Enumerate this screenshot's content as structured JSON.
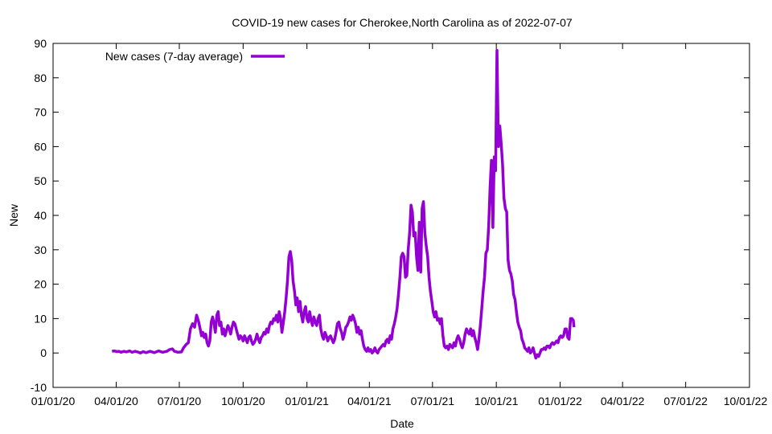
{
  "chart_data": {
    "type": "line",
    "title": "COVID-19 new cases for Cherokee,North Carolina as of 2022-07-07",
    "xlabel": "Date",
    "ylabel": "New",
    "ylim": [
      -10,
      90
    ],
    "yticks": [
      -10,
      0,
      10,
      20,
      30,
      40,
      50,
      60,
      70,
      80,
      90
    ],
    "xlim_days": [
      0,
      1004
    ],
    "xticks": [
      {
        "label": "01/01/20",
        "day": 0
      },
      {
        "label": "04/01/20",
        "day": 91
      },
      {
        "label": "07/01/20",
        "day": 182
      },
      {
        "label": "10/01/20",
        "day": 274
      },
      {
        "label": "01/01/21",
        "day": 366
      },
      {
        "label": "04/01/21",
        "day": 456
      },
      {
        "label": "07/01/21",
        "day": 547
      },
      {
        "label": "10/01/21",
        "day": 639
      },
      {
        "label": "01/01/22",
        "day": 731
      },
      {
        "label": "04/01/22",
        "day": 821
      },
      {
        "label": "07/01/22",
        "day": 912
      },
      {
        "label": "10/01/22",
        "day": 1004
      }
    ],
    "legend": {
      "position": "top-left",
      "label": "New cases (7-day average)"
    },
    "series": [
      {
        "name": "New cases (7-day average)",
        "color": "#9400d3",
        "x_unit": "days since 2020-01-01",
        "points": [
          [
            85,
            0.5
          ],
          [
            88,
            0.6
          ],
          [
            92,
            0.4
          ],
          [
            95,
            0.5
          ],
          [
            98,
            0.2
          ],
          [
            102,
            0.5
          ],
          [
            106,
            0.3
          ],
          [
            110,
            0.6
          ],
          [
            114,
            0.2
          ],
          [
            118,
            0.5
          ],
          [
            122,
            0.3
          ],
          [
            126,
            0.0
          ],
          [
            130,
            0.4
          ],
          [
            134,
            0.1
          ],
          [
            140,
            0.5
          ],
          [
            146,
            0.1
          ],
          [
            152,
            0.6
          ],
          [
            158,
            0.2
          ],
          [
            164,
            0.5
          ],
          [
            168,
            1.0
          ],
          [
            172,
            1.2
          ],
          [
            175,
            0.5
          ],
          [
            180,
            0.2
          ],
          [
            185,
            0.3
          ],
          [
            188,
            1.5
          ],
          [
            192,
            2.5
          ],
          [
            195,
            3.0
          ],
          [
            198,
            7.0
          ],
          [
            201,
            8.5
          ],
          [
            204,
            7.5
          ],
          [
            207,
            11.0
          ],
          [
            210,
            9.0
          ],
          [
            212,
            7.0
          ],
          [
            214,
            5.0
          ],
          [
            216,
            6.0
          ],
          [
            218,
            4.5
          ],
          [
            220,
            5.5
          ],
          [
            222,
            3.0
          ],
          [
            224,
            2.0
          ],
          [
            226,
            3.5
          ],
          [
            228,
            9.0
          ],
          [
            230,
            10.5
          ],
          [
            232,
            8.5
          ],
          [
            234,
            6.0
          ],
          [
            236,
            11.0
          ],
          [
            238,
            12.0
          ],
          [
            240,
            8.0
          ],
          [
            242,
            9.0
          ],
          [
            244,
            5.5
          ],
          [
            246,
            7.0
          ],
          [
            248,
            5.0
          ],
          [
            250,
            6.5
          ],
          [
            252,
            8.0
          ],
          [
            254,
            7.0
          ],
          [
            256,
            5.5
          ],
          [
            258,
            7.5
          ],
          [
            260,
            9.0
          ],
          [
            262,
            8.5
          ],
          [
            264,
            7.0
          ],
          [
            266,
            5.5
          ],
          [
            268,
            4.0
          ],
          [
            270,
            5.0
          ],
          [
            272,
            4.5
          ],
          [
            274,
            3.5
          ],
          [
            276,
            5.0
          ],
          [
            278,
            4.0
          ],
          [
            280,
            3.0
          ],
          [
            282,
            4.5
          ],
          [
            284,
            5.0
          ],
          [
            286,
            3.5
          ],
          [
            288,
            2.5
          ],
          [
            290,
            3.0
          ],
          [
            292,
            4.0
          ],
          [
            294,
            5.5
          ],
          [
            296,
            4.0
          ],
          [
            298,
            3.0
          ],
          [
            300,
            4.5
          ],
          [
            302,
            5.0
          ],
          [
            304,
            6.0
          ],
          [
            306,
            5.5
          ],
          [
            308,
            7.0
          ],
          [
            310,
            6.0
          ],
          [
            312,
            8.0
          ],
          [
            314,
            9.0
          ],
          [
            316,
            8.5
          ],
          [
            318,
            10.0
          ],
          [
            320,
            9.5
          ],
          [
            322,
            11.0
          ],
          [
            324,
            9.0
          ],
          [
            326,
            12.0
          ],
          [
            328,
            10.0
          ],
          [
            330,
            6.0
          ],
          [
            332,
            9.0
          ],
          [
            334,
            12.0
          ],
          [
            336,
            16.0
          ],
          [
            338,
            21.0
          ],
          [
            340,
            28.0
          ],
          [
            342,
            29.5
          ],
          [
            344,
            27.0
          ],
          [
            346,
            21.0
          ],
          [
            348,
            18.0
          ],
          [
            350,
            14.0
          ],
          [
            352,
            16.0
          ],
          [
            354,
            12.0
          ],
          [
            356,
            15.0
          ],
          [
            358,
            11.0
          ],
          [
            360,
            9.0
          ],
          [
            362,
            12.0
          ],
          [
            364,
            13.5
          ],
          [
            366,
            10.0
          ],
          [
            368,
            9.0
          ],
          [
            370,
            12.0
          ],
          [
            372,
            9.5
          ],
          [
            374,
            8.0
          ],
          [
            376,
            10.5
          ],
          [
            378,
            9.0
          ],
          [
            380,
            8.0
          ],
          [
            382,
            10.0
          ],
          [
            384,
            11.0
          ],
          [
            386,
            7.0
          ],
          [
            388,
            5.0
          ],
          [
            390,
            4.0
          ],
          [
            392,
            6.0
          ],
          [
            394,
            5.0
          ],
          [
            396,
            3.5
          ],
          [
            398,
            4.5
          ],
          [
            400,
            5.0
          ],
          [
            402,
            4.0
          ],
          [
            404,
            3.0
          ],
          [
            406,
            4.0
          ],
          [
            408,
            6.0
          ],
          [
            410,
            8.5
          ],
          [
            412,
            9.0
          ],
          [
            414,
            7.0
          ],
          [
            416,
            6.0
          ],
          [
            418,
            4.0
          ],
          [
            420,
            5.5
          ],
          [
            422,
            7.5
          ],
          [
            424,
            8.0
          ],
          [
            426,
            9.0
          ],
          [
            428,
            10.5
          ],
          [
            430,
            9.5
          ],
          [
            432,
            11.0
          ],
          [
            434,
            10.0
          ],
          [
            436,
            8.5
          ],
          [
            438,
            6.0
          ],
          [
            440,
            7.5
          ],
          [
            442,
            5.5
          ],
          [
            444,
            6.5
          ],
          [
            446,
            4.0
          ],
          [
            448,
            2.0
          ],
          [
            450,
            1.0
          ],
          [
            452,
            0.5
          ],
          [
            454,
            1.5
          ],
          [
            456,
            0.5
          ],
          [
            458,
            1.0
          ],
          [
            460,
            0.0
          ],
          [
            462,
            0.5
          ],
          [
            464,
            1.5
          ],
          [
            466,
            0.5
          ],
          [
            468,
            0.0
          ],
          [
            470,
            1.0
          ],
          [
            472,
            1.5
          ],
          [
            474,
            2.0
          ],
          [
            476,
            2.5
          ],
          [
            478,
            2.0
          ],
          [
            480,
            3.5
          ],
          [
            482,
            4.0
          ],
          [
            484,
            3.0
          ],
          [
            486,
            5.0
          ],
          [
            488,
            4.0
          ],
          [
            490,
            7.0
          ],
          [
            492,
            8.5
          ],
          [
            494,
            10.5
          ],
          [
            496,
            13.0
          ],
          [
            498,
            17.0
          ],
          [
            500,
            22.0
          ],
          [
            502,
            28.0
          ],
          [
            504,
            29.0
          ],
          [
            506,
            28.0
          ],
          [
            508,
            22.0
          ],
          [
            510,
            22.5
          ],
          [
            512,
            30.0
          ],
          [
            514,
            35.0
          ],
          [
            516,
            43.0
          ],
          [
            518,
            41.0
          ],
          [
            520,
            34.0
          ],
          [
            522,
            35.0
          ],
          [
            524,
            28.0
          ],
          [
            526,
            24.0
          ],
          [
            528,
            38.0
          ],
          [
            530,
            23.5
          ],
          [
            532,
            42.0
          ],
          [
            534,
            44.0
          ],
          [
            536,
            35.0
          ],
          [
            538,
            31.0
          ],
          [
            540,
            28.0
          ],
          [
            542,
            22.0
          ],
          [
            544,
            18.0
          ],
          [
            546,
            15.0
          ],
          [
            548,
            12.0
          ],
          [
            550,
            10.5
          ],
          [
            552,
            12.0
          ],
          [
            554,
            9.5
          ],
          [
            556,
            10.0
          ],
          [
            558,
            8.5
          ],
          [
            560,
            10.0
          ],
          [
            562,
            5.0
          ],
          [
            564,
            2.0
          ],
          [
            566,
            1.5
          ],
          [
            568,
            2.0
          ],
          [
            570,
            1.0
          ],
          [
            572,
            2.5
          ],
          [
            574,
            2.0
          ],
          [
            576,
            1.5
          ],
          [
            578,
            3.0
          ],
          [
            580,
            2.0
          ],
          [
            582,
            4.0
          ],
          [
            584,
            5.0
          ],
          [
            586,
            4.0
          ],
          [
            588,
            2.5
          ],
          [
            590,
            1.5
          ],
          [
            592,
            3.0
          ],
          [
            594,
            5.5
          ],
          [
            596,
            7.0
          ],
          [
            598,
            6.0
          ],
          [
            600,
            5.5
          ],
          [
            602,
            7.0
          ],
          [
            604,
            5.0
          ],
          [
            606,
            6.5
          ],
          [
            608,
            4.5
          ],
          [
            610,
            3.0
          ],
          [
            612,
            1.0
          ],
          [
            614,
            4.0
          ],
          [
            616,
            8.0
          ],
          [
            618,
            13.0
          ],
          [
            620,
            18.0
          ],
          [
            622,
            22.0
          ],
          [
            624,
            29.0
          ],
          [
            626,
            30.0
          ],
          [
            628,
            37.0
          ],
          [
            630,
            48.0
          ],
          [
            632,
            56.0
          ],
          [
            634,
            36.5
          ],
          [
            636,
            57.0
          ],
          [
            638,
            53.0
          ],
          [
            640,
            88.0
          ],
          [
            642,
            60.0
          ],
          [
            644,
            66.0
          ],
          [
            646,
            61.0
          ],
          [
            648,
            55.0
          ],
          [
            650,
            45.0
          ],
          [
            652,
            42.0
          ],
          [
            654,
            41.0
          ],
          [
            656,
            27.0
          ],
          [
            658,
            24.0
          ],
          [
            660,
            23.0
          ],
          [
            662,
            21.0
          ],
          [
            664,
            17.0
          ],
          [
            666,
            15.5
          ],
          [
            668,
            12.0
          ],
          [
            670,
            9.0
          ],
          [
            672,
            7.5
          ],
          [
            674,
            6.5
          ],
          [
            676,
            4.0
          ],
          [
            678,
            3.0
          ],
          [
            680,
            1.5
          ],
          [
            682,
            1.0
          ],
          [
            684,
            0.5
          ],
          [
            686,
            1.5
          ],
          [
            688,
            0.0
          ],
          [
            690,
            0.5
          ],
          [
            692,
            1.5
          ],
          [
            694,
            0.0
          ],
          [
            696,
            -1.5
          ],
          [
            698,
            -0.5
          ],
          [
            700,
            -1.0
          ],
          [
            702,
            0.0
          ],
          [
            704,
            1.0
          ],
          [
            706,
            1.0
          ],
          [
            708,
            1.5
          ],
          [
            710,
            1.0
          ],
          [
            712,
            2.0
          ],
          [
            714,
            2.0
          ],
          [
            716,
            1.5
          ],
          [
            718,
            2.5
          ],
          [
            720,
            3.0
          ],
          [
            722,
            2.5
          ],
          [
            724,
            3.0
          ],
          [
            726,
            3.5
          ],
          [
            728,
            3.0
          ],
          [
            730,
            4.5
          ],
          [
            732,
            5.0
          ],
          [
            734,
            4.5
          ],
          [
            736,
            5.0
          ],
          [
            738,
            7.0
          ],
          [
            740,
            7.0
          ],
          [
            742,
            4.5
          ],
          [
            744,
            4.0
          ],
          [
            746,
            10.0
          ],
          [
            748,
            10.0
          ],
          [
            750,
            9.5
          ],
          [
            751,
            7.5
          ]
        ]
      }
    ]
  }
}
